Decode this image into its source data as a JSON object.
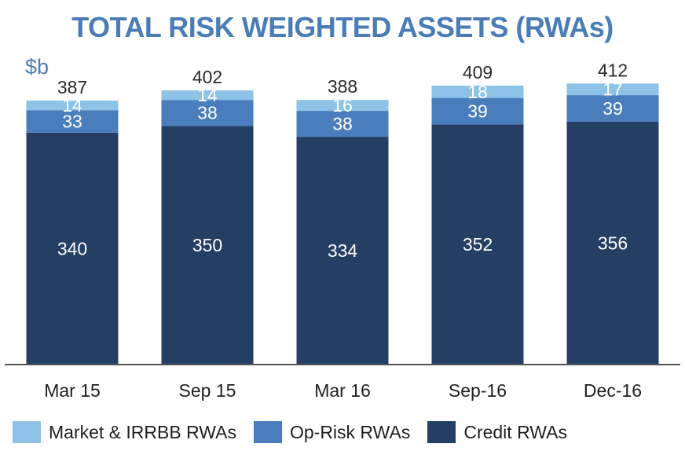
{
  "chart_data": {
    "type": "bar",
    "stacked": true,
    "title": "TOTAL RISK WEIGHTED ASSETS (RWAs)",
    "unit": "$b",
    "categories": [
      "Mar 15",
      "Sep 15",
      "Mar 16",
      "Sep-16",
      "Dec-16"
    ],
    "series": [
      {
        "name": "Credit RWAs",
        "color": "#243f63",
        "values": [
          340,
          350,
          334,
          352,
          356
        ]
      },
      {
        "name": "Op-Risk RWAs",
        "color": "#4a7dbb",
        "values": [
          33,
          38,
          38,
          39,
          39
        ]
      },
      {
        "name": "Market & IRRBB RWAs",
        "color": "#8cc3e6",
        "values": [
          14,
          14,
          16,
          18,
          17
        ]
      }
    ],
    "totals": [
      387,
      402,
      388,
      409,
      412
    ],
    "legend_order": [
      "Market & IRRBB RWAs",
      "Op-Risk RWAs",
      "Credit RWAs"
    ],
    "legend_position": "bottom",
    "grid": false,
    "ylim": [
      0,
      470
    ]
  }
}
